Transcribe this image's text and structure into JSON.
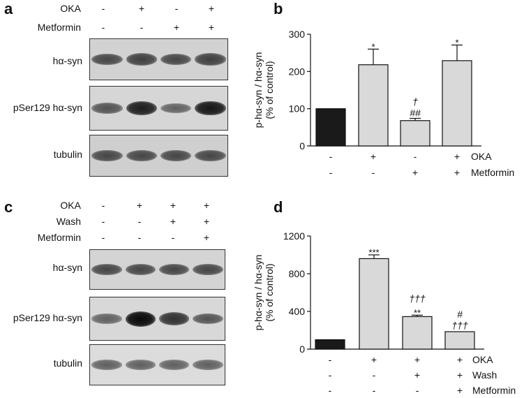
{
  "panel_a": {
    "letter": "a",
    "conditions": [
      {
        "label": "OKA",
        "signs": [
          "-",
          "+",
          "-",
          "+"
        ]
      },
      {
        "label": "Metformin",
        "signs": [
          "-",
          "-",
          "+",
          "+"
        ]
      }
    ],
    "blots": [
      {
        "label": "hα-syn",
        "intensities": [
          0.55,
          0.6,
          0.55,
          0.6
        ],
        "bg": "#d2d2d2"
      },
      {
        "label": "pSer129 hα-syn",
        "intensities": [
          0.45,
          0.85,
          0.35,
          0.9
        ],
        "bg": "#d6d6d6"
      },
      {
        "label": "tubulin",
        "intensities": [
          0.55,
          0.55,
          0.55,
          0.55
        ],
        "bg": "#cfcfcf"
      }
    ]
  },
  "panel_c": {
    "letter": "c",
    "conditions": [
      {
        "label": "OKA",
        "signs": [
          "-",
          "+",
          "+",
          "+"
        ]
      },
      {
        "label": "Wash",
        "signs": [
          "-",
          "-",
          "+",
          "+"
        ]
      },
      {
        "label": "Metformin",
        "signs": [
          "-",
          "-",
          "-",
          "+"
        ]
      }
    ],
    "blots": [
      {
        "label": "hα-syn",
        "intensities": [
          0.55,
          0.55,
          0.55,
          0.55
        ],
        "bg": "#d4d4d4"
      },
      {
        "label": "pSer129 hα-syn",
        "intensities": [
          0.35,
          1.0,
          0.7,
          0.45
        ],
        "bg": "#d8d8d8"
      },
      {
        "label": "tubulin",
        "intensities": [
          0.35,
          0.35,
          0.35,
          0.35
        ],
        "bg": "#dcdcdc"
      }
    ]
  },
  "chart_data": [
    {
      "panel": "b",
      "type": "bar",
      "ylabel": "p-hα-syn / hα-syn\n(% of control)",
      "ylim": [
        0,
        300
      ],
      "yticks": [
        0,
        100,
        200,
        300
      ],
      "values": [
        100,
        218,
        68,
        229
      ],
      "errors": [
        0,
        42,
        6,
        42
      ],
      "bar_colors": [
        "#1a1a1a",
        "#d9d9d9",
        "#d9d9d9",
        "#d9d9d9"
      ],
      "annotations": [
        [],
        [
          "*"
        ],
        [
          "##",
          "†"
        ],
        [
          "*"
        ]
      ],
      "condition_rows": [
        {
          "label": "OKA",
          "signs": [
            "-",
            "+",
            "-",
            "+"
          ]
        },
        {
          "label": "Metformin",
          "signs": [
            "-",
            "-",
            "+",
            "+"
          ]
        }
      ]
    },
    {
      "panel": "d",
      "type": "bar",
      "ylabel": "p-hα-syn / hα-syn\n(% of control)",
      "ylim": [
        0,
        1200
      ],
      "yticks": [
        0,
        400,
        800,
        1200
      ],
      "values": [
        100,
        960,
        345,
        185
      ],
      "errors": [
        0,
        40,
        15,
        0
      ],
      "bar_colors": [
        "#1a1a1a",
        "#d9d9d9",
        "#d9d9d9",
        "#d9d9d9"
      ],
      "annotations": [
        [],
        [
          "***"
        ],
        [
          "**",
          "†††"
        ],
        [
          "†††",
          "#"
        ]
      ],
      "condition_rows": [
        {
          "label": "OKA",
          "signs": [
            "-",
            "+",
            "+",
            "+"
          ]
        },
        {
          "label": "Wash",
          "signs": [
            "-",
            "-",
            "+",
            "+"
          ]
        },
        {
          "label": "Metformin",
          "signs": [
            "-",
            "-",
            "-",
            "+"
          ]
        }
      ]
    }
  ]
}
